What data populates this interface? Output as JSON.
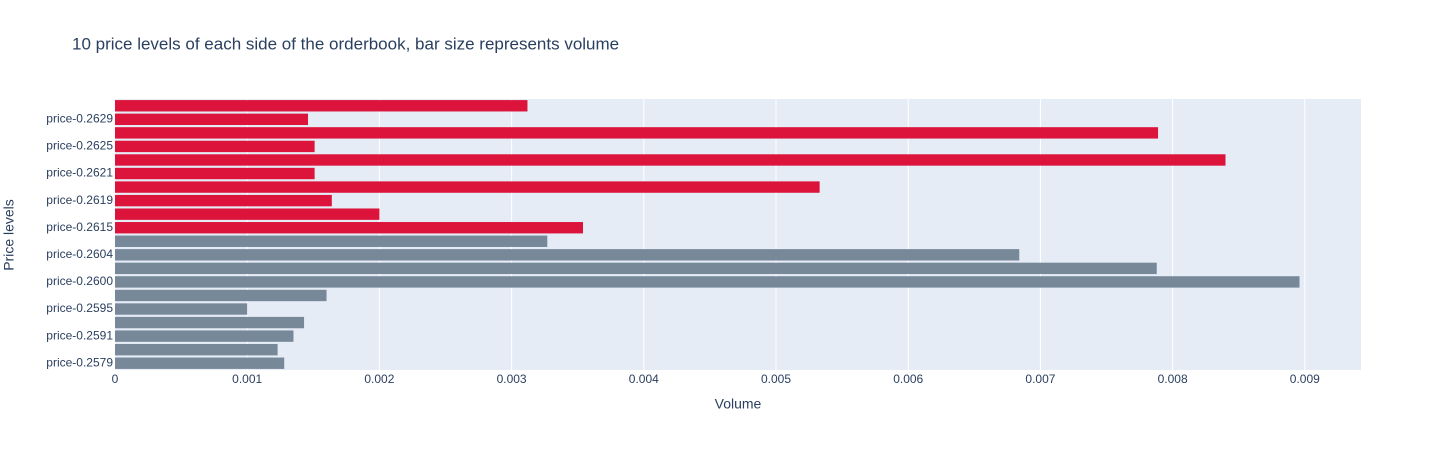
{
  "chart_data": {
    "type": "barh",
    "title": "10 price levels of each side of the orderbook, bar size represents volume",
    "x_label": "Volume",
    "y_label": "Price levels",
    "categories": [
      "price-0.2579",
      null,
      "price-0.2591",
      null,
      "price-0.2595",
      null,
      "price-0.2600",
      null,
      "price-0.2604",
      null,
      "price-0.2615",
      null,
      "price-0.2619",
      null,
      "price-0.2621",
      null,
      "price-0.2625",
      null,
      "price-0.2629",
      null
    ],
    "values": [
      0.00128,
      0.00123,
      0.00135,
      0.00143,
      0.001,
      0.0016,
      0.00896,
      0.00788,
      0.00684,
      0.00327,
      0.00354,
      0.002,
      0.00164,
      0.00533,
      0.00151,
      0.0084,
      0.00151,
      0.00789,
      0.00146,
      0.00312
    ],
    "colors": [
      "#778899",
      "#778899",
      "#778899",
      "#778899",
      "#778899",
      "#778899",
      "#778899",
      "#778899",
      "#778899",
      "#778899",
      "#dc143c",
      "#dc143c",
      "#dc143c",
      "#dc143c",
      "#dc143c",
      "#dc143c",
      "#dc143c",
      "#dc143c",
      "#dc143c",
      "#dc143c"
    ],
    "xlim": [
      0,
      0.009425
    ],
    "xticks": [
      0,
      0.001,
      0.002,
      0.003,
      0.004,
      0.005,
      0.006,
      0.007,
      0.008,
      0.009
    ],
    "grid": true
  }
}
